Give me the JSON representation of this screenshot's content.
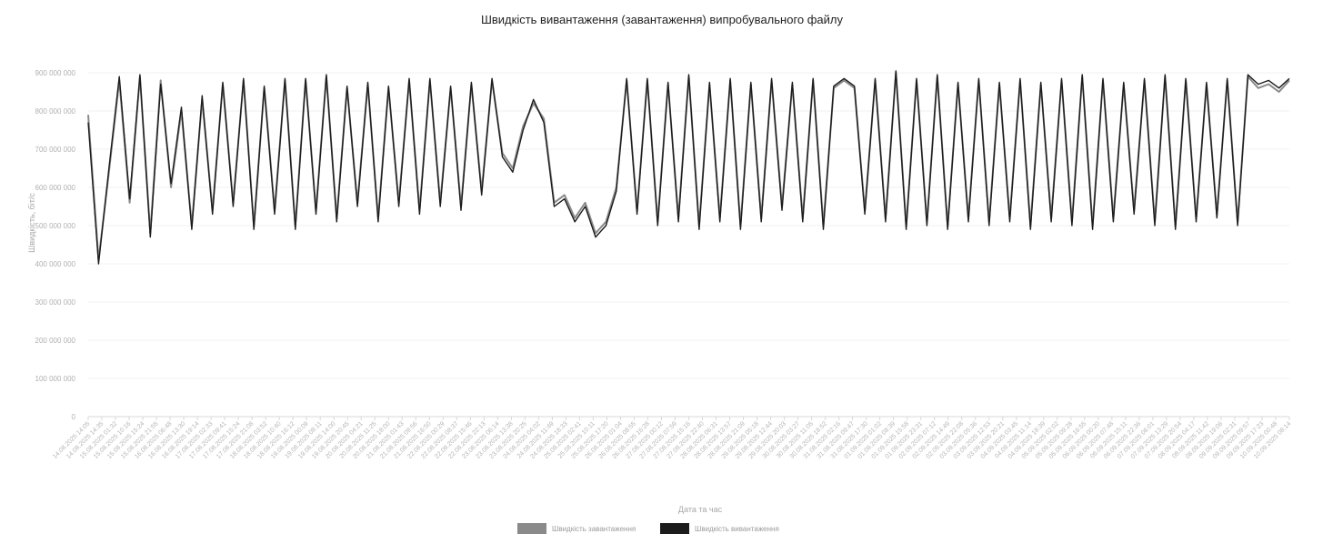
{
  "chart_data": {
    "type": "line",
    "title": "Швидкість вивантаження (завантаження) випробувального файлу",
    "xlabel": "Дата та час",
    "ylabel": "Швидкість, біт/с",
    "ylim": [
      0,
      900000000
    ],
    "y_ticks": [
      {
        "value": 0,
        "label": "0"
      },
      {
        "value": 100000000,
        "label": "100 000 000"
      },
      {
        "value": 200000000,
        "label": "200 000 000"
      },
      {
        "value": 300000000,
        "label": "300 000 000"
      },
      {
        "value": 400000000,
        "label": "400 000 000"
      },
      {
        "value": 500000000,
        "label": "500 000 000"
      },
      {
        "value": 600000000,
        "label": "600 000 000"
      },
      {
        "value": 700000000,
        "label": "700 000 000"
      },
      {
        "value": 800000000,
        "label": "800 000 000"
      },
      {
        "value": 900000000,
        "label": "900 000 000"
      }
    ],
    "grid": true,
    "legend_position": "bottom-center",
    "x_tick_labels": [
      "14.08.2025 14:05",
      "14.08.2025 14:35",
      "15.08.2025 01:32",
      "15.08.2025 10:16",
      "15.08.2025 15:24",
      "15.08.2025 21:55",
      "16.08.2025 06:48",
      "16.08.2025 13:30",
      "16.08.2025 19:14",
      "17.08.2025 02:33",
      "17.08.2025 09:41",
      "17.08.2025 15:24",
      "17.08.2025 21:08",
      "18.08.2025 03:52",
      "18.08.2025 10:40",
      "18.08.2025 16:12",
      "19.08.2025 00:09",
      "19.08.2025 08:11",
      "19.08.2025 14:00",
      "19.08.2025 20:45",
      "20.08.2025 04:21",
      "20.08.2025 11:25",
      "20.08.2025 18:00",
      "21.08.2025 01:43",
      "21.08.2025 09:56",
      "21.08.2025 16:50",
      "22.08.2025 00:29",
      "22.08.2025 08:37",
      "22.08.2025 15:46",
      "22.08.2025 22:13",
      "23.08.2025 06:14",
      "23.08.2025 13:38",
      "23.08.2025 20:25",
      "24.08.2025 04:02",
      "24.08.2025 11:49",
      "24.08.2025 18:33",
      "25.08.2025 02:41",
      "25.08.2025 10:11",
      "25.08.2025 17:20",
      "26.08.2025 01:04",
      "26.08.2025 08:55",
      "26.08.2025 16:28",
      "27.08.2025 00:12",
      "27.08.2025 07:59",
      "27.08.2025 15:16",
      "27.08.2025 22:40",
      "28.08.2025 06:31",
      "28.08.2025 13:57",
      "28.08.2025 21:09",
      "29.08.2025 05:18",
      "29.08.2025 12:44",
      "29.08.2025 20:03",
      "30.08.2025 03:27",
      "30.08.2025 11:05",
      "30.08.2025 18:52",
      "31.08.2025 02:16",
      "31.08.2025 09:47",
      "31.08.2025 17:30",
      "01.09.2025 01:02",
      "01.09.2025 08:39",
      "01.09.2025 15:58",
      "01.09.2025 23:31",
      "02.09.2025 07:12",
      "02.09.2025 14:49",
      "02.09.2025 22:08",
      "03.09.2025 05:36",
      "03.09.2025 12:53",
      "03.09.2025 20:21",
      "04.09.2025 03:45",
      "04.09.2025 11:14",
      "04.09.2025 18:39",
      "05.09.2025 02:02",
      "05.09.2025 09:28",
      "05.09.2025 16:55",
      "06.09.2025 00:20",
      "06.09.2025 07:48",
      "06.09.2025 15:11",
      "06.09.2025 22:36",
      "07.09.2025 06:01",
      "07.09.2025 13:29",
      "07.09.2025 20:54",
      "08.09.2025 04:17",
      "08.09.2025 11:42",
      "08.09.2025 19:06",
      "09.09.2025 02:31",
      "09.09.2025 09:57",
      "09.09.2025 17:23",
      "10.09.2025 00:48",
      "10.09.2025 08:14"
    ],
    "series": [
      {
        "name": "Швидкість завантаження",
        "color": "#8a8a8a",
        "values": [
          790000000,
          410000000,
          640000000,
          880000000,
          560000000,
          890000000,
          480000000,
          880000000,
          600000000,
          800000000,
          500000000,
          830000000,
          540000000,
          870000000,
          560000000,
          880000000,
          500000000,
          860000000,
          540000000,
          880000000,
          500000000,
          880000000,
          540000000,
          890000000,
          520000000,
          860000000,
          560000000,
          870000000,
          520000000,
          860000000,
          560000000,
          880000000,
          540000000,
          880000000,
          560000000,
          860000000,
          550000000,
          870000000,
          590000000,
          880000000,
          690000000,
          650000000,
          760000000,
          820000000,
          780000000,
          560000000,
          580000000,
          520000000,
          560000000,
          480000000,
          510000000,
          600000000,
          880000000,
          540000000,
          880000000,
          510000000,
          870000000,
          520000000,
          890000000,
          500000000,
          870000000,
          520000000,
          880000000,
          500000000,
          870000000,
          520000000,
          880000000,
          550000000,
          870000000,
          520000000,
          880000000,
          500000000,
          860000000,
          880000000,
          860000000,
          540000000,
          880000000,
          520000000,
          900000000,
          500000000,
          880000000,
          510000000,
          890000000,
          500000000,
          870000000,
          520000000,
          880000000,
          510000000,
          870000000,
          520000000,
          880000000,
          500000000,
          870000000,
          520000000,
          880000000,
          510000000,
          890000000,
          500000000,
          880000000,
          520000000,
          870000000,
          540000000,
          880000000,
          510000000,
          890000000,
          500000000,
          880000000,
          520000000,
          870000000,
          530000000,
          880000000,
          510000000,
          890000000,
          860000000,
          870000000,
          850000000,
          880000000
        ]
      },
      {
        "name": "Швидкість вивантаження",
        "color": "#1c1c1c",
        "values": [
          770000000,
          400000000,
          650000000,
          890000000,
          570000000,
          895000000,
          470000000,
          870000000,
          610000000,
          810000000,
          490000000,
          840000000,
          530000000,
          875000000,
          550000000,
          885000000,
          490000000,
          865000000,
          530000000,
          885000000,
          490000000,
          885000000,
          530000000,
          895000000,
          510000000,
          865000000,
          550000000,
          875000000,
          510000000,
          865000000,
          550000000,
          885000000,
          530000000,
          885000000,
          550000000,
          865000000,
          540000000,
          875000000,
          580000000,
          885000000,
          680000000,
          640000000,
          750000000,
          830000000,
          770000000,
          550000000,
          570000000,
          510000000,
          550000000,
          470000000,
          500000000,
          590000000,
          885000000,
          530000000,
          885000000,
          500000000,
          875000000,
          510000000,
          895000000,
          490000000,
          875000000,
          510000000,
          885000000,
          490000000,
          875000000,
          510000000,
          885000000,
          540000000,
          875000000,
          510000000,
          885000000,
          490000000,
          865000000,
          885000000,
          865000000,
          530000000,
          885000000,
          510000000,
          905000000,
          490000000,
          885000000,
          500000000,
          895000000,
          490000000,
          875000000,
          510000000,
          885000000,
          500000000,
          875000000,
          510000000,
          885000000,
          490000000,
          875000000,
          510000000,
          885000000,
          500000000,
          895000000,
          490000000,
          885000000,
          510000000,
          875000000,
          530000000,
          885000000,
          500000000,
          895000000,
          490000000,
          885000000,
          510000000,
          875000000,
          520000000,
          885000000,
          500000000,
          895000000,
          870000000,
          880000000,
          860000000,
          885000000
        ]
      }
    ]
  }
}
